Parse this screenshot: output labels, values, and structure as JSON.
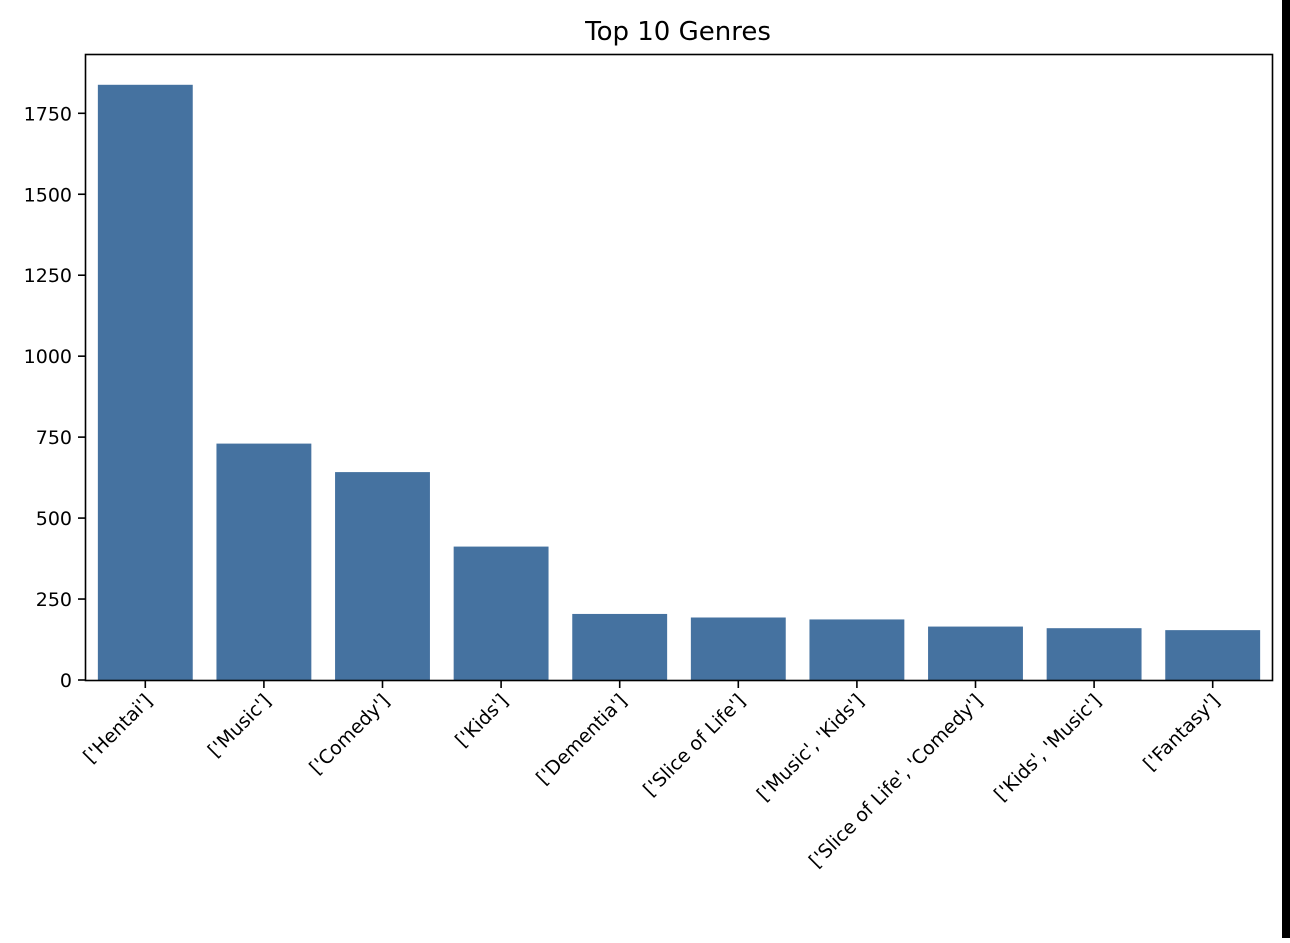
{
  "chart_data": {
    "type": "bar",
    "title": "Top 10 Genres",
    "xlabel": "",
    "ylabel": "",
    "categories": [
      "['Hentai']",
      "['Music']",
      "['Comedy']",
      "['Kids']",
      "['Dementia']",
      "['Slice of Life']",
      "['Music', 'Kids']",
      "['Slice of Life', 'Comedy']",
      "['Kids', 'Music']",
      "['Fantasy']"
    ],
    "values": [
      1838,
      730,
      642,
      412,
      204,
      193,
      187,
      165,
      160,
      154
    ],
    "ylim": [
      0,
      1930
    ],
    "yticks": [
      0,
      250,
      500,
      750,
      1000,
      1250,
      1500,
      1750
    ],
    "bar_color": "#4572a0",
    "grid": false,
    "legend": "none"
  }
}
